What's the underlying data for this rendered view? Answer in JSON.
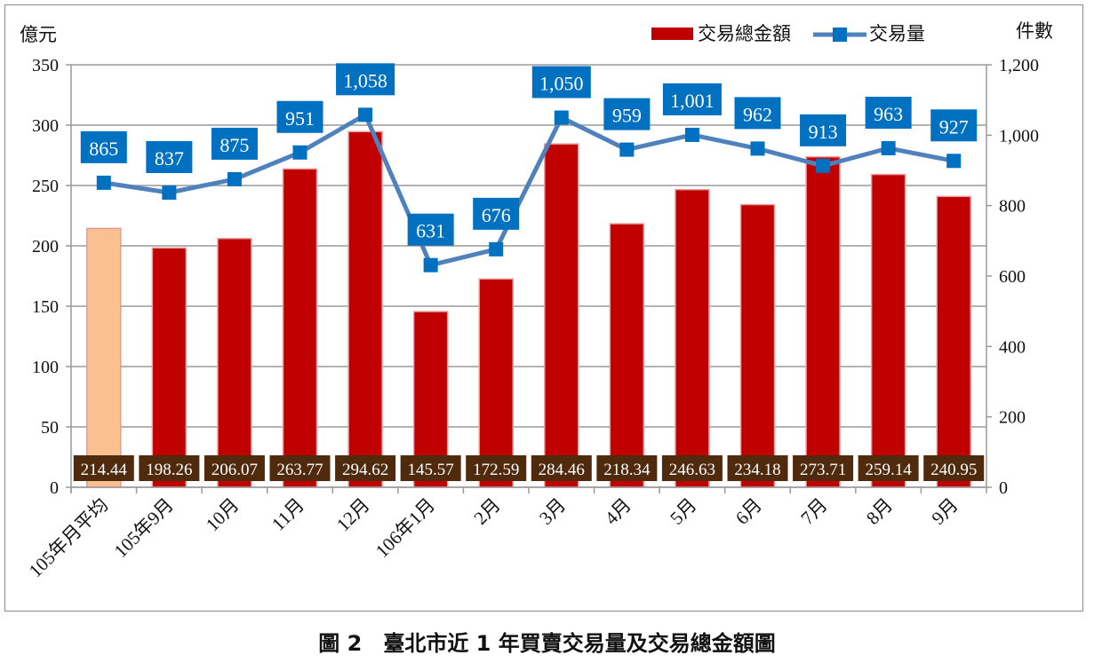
{
  "chart_data": {
    "type": "bar+line",
    "categories": [
      "105年月平均",
      "105年9月",
      "10月",
      "11月",
      "12月",
      "106年1月",
      "2月",
      "3月",
      "4月",
      "5月",
      "6月",
      "7月",
      "8月",
      "9月"
    ],
    "series": [
      {
        "name": "交易總金額",
        "type": "bar",
        "axis": "left",
        "color": "#c00000",
        "highlight_first_color": "#fac090",
        "values": [
          214.44,
          198.26,
          206.07,
          263.77,
          294.62,
          145.57,
          172.59,
          284.46,
          218.34,
          246.63,
          234.18,
          273.71,
          259.14,
          240.95
        ],
        "labels": [
          "214.44",
          "198.26",
          "206.07",
          "263.77",
          "294.62",
          "145.57",
          "172.59",
          "284.46",
          "218.34",
          "246.63",
          "234.18",
          "273.71",
          "259.14",
          "240.95"
        ]
      },
      {
        "name": "交易量",
        "type": "line",
        "axis": "right",
        "color": "#4f81bd",
        "marker_color": "#0070c0",
        "values": [
          865,
          837,
          875,
          951,
          1058,
          631,
          676,
          1050,
          959,
          1001,
          962,
          913,
          963,
          927
        ],
        "labels": [
          "865",
          "837",
          "875",
          "951",
          "1,058",
          "631",
          "676",
          "1,050",
          "959",
          "1,001",
          "962",
          "913",
          "963",
          "927"
        ]
      }
    ],
    "ylabel": "億元",
    "y2label": "件數",
    "ylim": [
      0,
      350
    ],
    "y2lim": [
      0,
      1200
    ],
    "yticks": [
      "0",
      "50",
      "100",
      "150",
      "200",
      "250",
      "300",
      "350"
    ],
    "y2ticks": [
      "0",
      "200",
      "400",
      "600",
      "800",
      "1,000",
      "1,200"
    ],
    "grid": true,
    "legend": "top-right",
    "bar_label_color": "#4f2a0c"
  },
  "caption": "圖 2　臺北市近 1 年買賣交易量及交易總金額圖"
}
